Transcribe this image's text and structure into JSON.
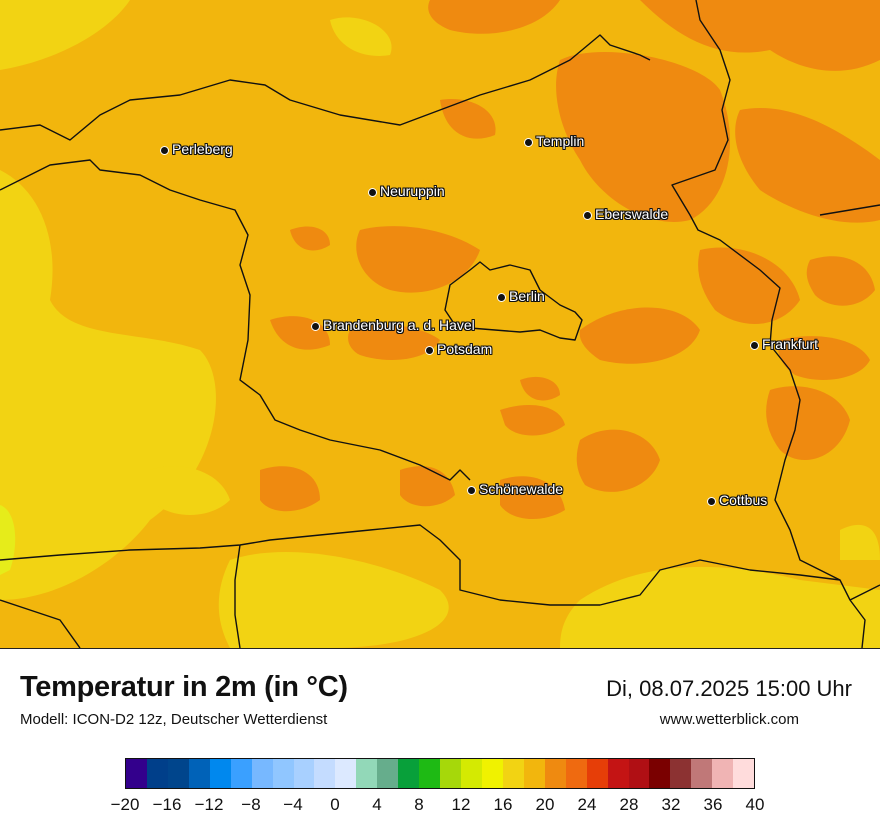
{
  "map": {
    "cities": [
      {
        "name": "Perleberg"
      },
      {
        "name": "Templin"
      },
      {
        "name": "Neuruppin"
      },
      {
        "name": "Eberswalde"
      },
      {
        "name": "Berlin"
      },
      {
        "name": "Brandenburg a. d. Havel"
      },
      {
        "name": "Potsdam"
      },
      {
        "name": "Frankfurt"
      },
      {
        "name": "Schönewalde"
      },
      {
        "name": "Cottbus"
      }
    ],
    "colors": {
      "base": "#f2b60d",
      "warm": "#ef8a10",
      "cool": "#f2d313",
      "cooler": "#e6ec1a",
      "border": "#111111"
    }
  },
  "title": "Temperatur in 2m (in °C)",
  "model": "Modell: ICON-D2 12z, Deutscher Wetterdienst",
  "datetime": "Di, 08.07.2025 15:00 Uhr",
  "site": "www.wetterblick.com",
  "colorbar": {
    "min": -20,
    "max": 40,
    "step": 2,
    "tick_labels": [
      "−20",
      "−16",
      "−12",
      "−8",
      "−4",
      "0",
      "4",
      "8",
      "12",
      "16",
      "20",
      "24",
      "28",
      "32",
      "36",
      "40"
    ],
    "colors": [
      "#33008c",
      "#003f8a",
      "#00458c",
      "#0062b8",
      "#0088ee",
      "#3aa0ff",
      "#77b8ff",
      "#90c6ff",
      "#a8d0ff",
      "#c4dcff",
      "#dce9ff",
      "#92d8b8",
      "#66ad8c",
      "#08a03a",
      "#1eba14",
      "#a6d80a",
      "#d4ea02",
      "#f0f200",
      "#f2d313",
      "#f2b60d",
      "#ef8a10",
      "#ef6a10",
      "#e63e08",
      "#c41414",
      "#b00f14",
      "#7a0000",
      "#8c3232",
      "#c07878",
      "#f0b4b4",
      "#ffdcdc"
    ]
  }
}
